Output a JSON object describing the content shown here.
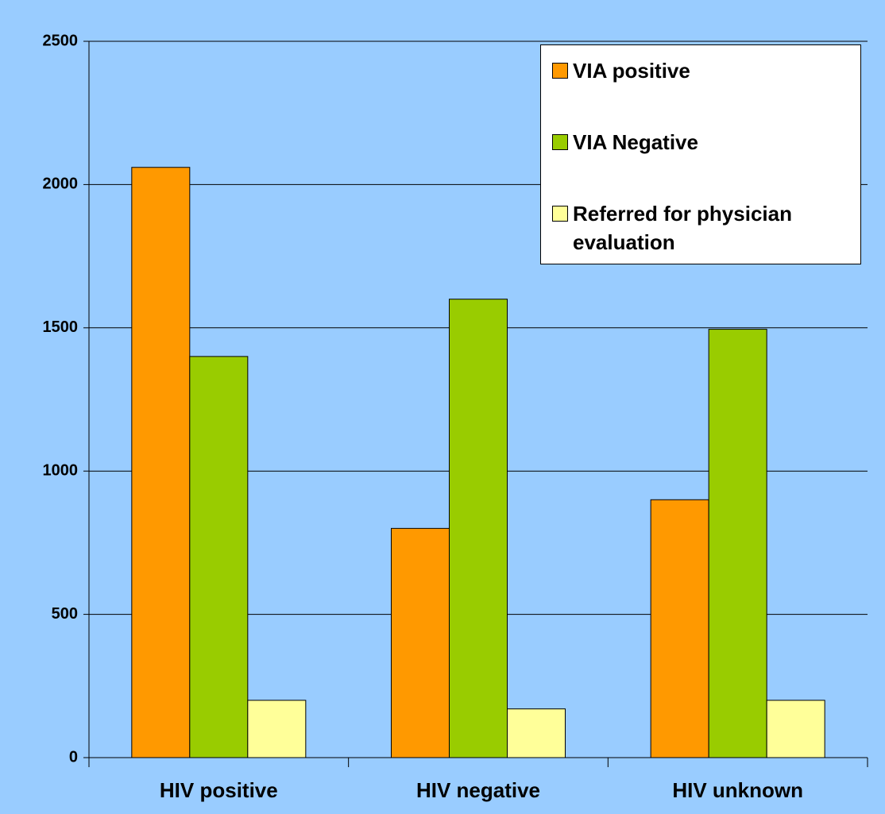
{
  "chart_data": {
    "type": "bar",
    "categories": [
      "HIV positive",
      "HIV negative",
      "HIV unknown"
    ],
    "series": [
      {
        "name": "VIA positive",
        "color": "#ff9900",
        "values": [
          2060,
          800,
          900
        ]
      },
      {
        "name": "VIA Negative",
        "color": "#99cc00",
        "values": [
          1400,
          1600,
          1495
        ]
      },
      {
        "name": "Referred for physician evaluation",
        "color": "#ffff99",
        "values": [
          200,
          170,
          200
        ]
      }
    ],
    "ylim": [
      0,
      2500
    ],
    "yticks": [
      0,
      500,
      1000,
      1500,
      2000,
      2500
    ],
    "grid": true,
    "legend": "top-right"
  }
}
